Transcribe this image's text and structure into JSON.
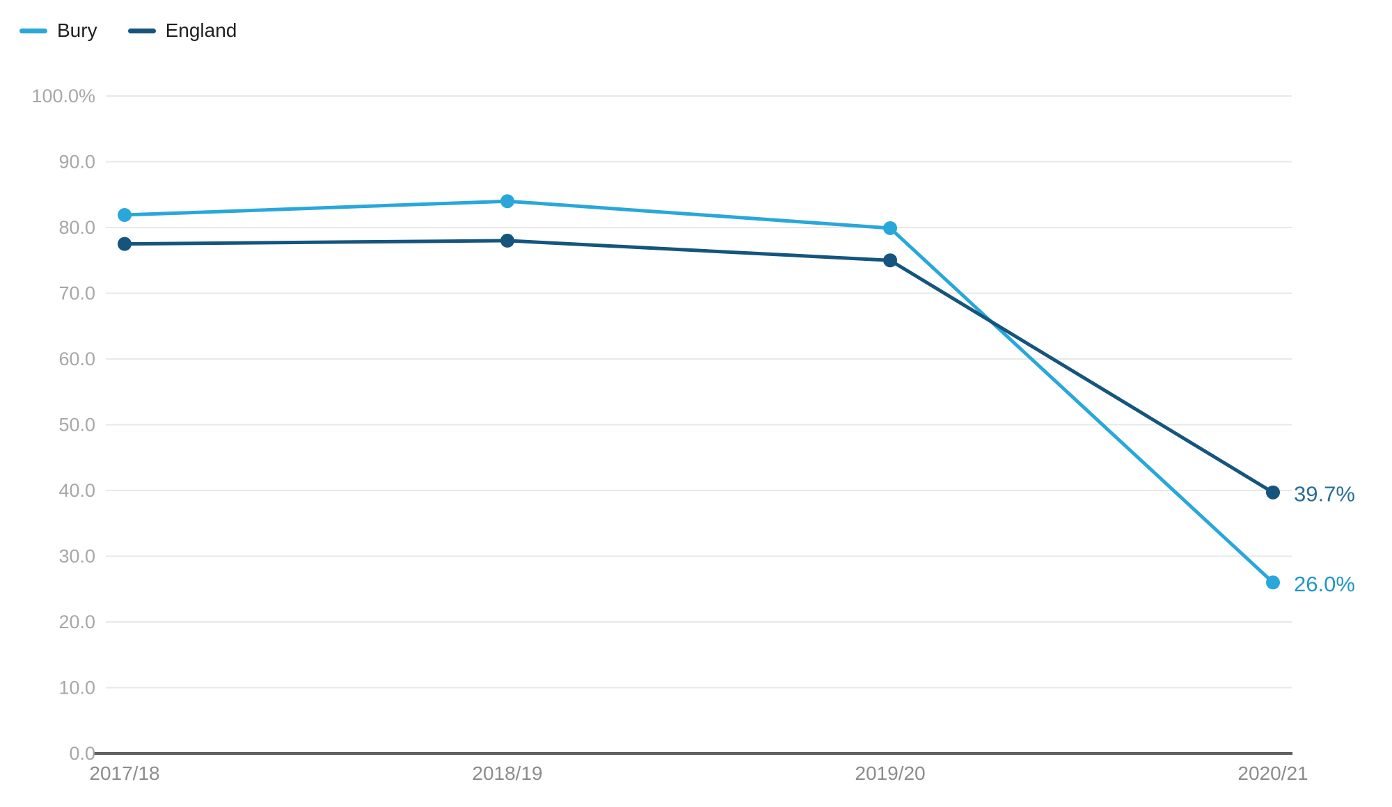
{
  "chart_data": {
    "type": "line",
    "title": "",
    "xlabel": "",
    "ylabel": "",
    "categories": [
      "2017/18",
      "2018/19",
      "2019/20",
      "2020/21"
    ],
    "series": [
      {
        "name": "Bury",
        "color": "#2AA7DA",
        "label_color": "#2196C9",
        "values": [
          81.9,
          84.0,
          79.9,
          26.0
        ],
        "end_label": "26.0%"
      },
      {
        "name": "England",
        "color": "#15557D",
        "label_color": "#2A6E94",
        "values": [
          77.5,
          78.0,
          75.0,
          39.7
        ],
        "end_label": "39.7%"
      }
    ],
    "ylim": [
      0,
      100
    ],
    "y_tick_step": 10,
    "y_tick_labels": [
      "0.0",
      "10.0",
      "20.0",
      "30.0",
      "40.0",
      "50.0",
      "60.0",
      "70.0",
      "80.0",
      "90.0",
      "100.0%"
    ],
    "grid": "horizontal",
    "legend_position": "top-left",
    "grid_color": "#e8e8e8",
    "axis_line_color": "#5f5f5f",
    "y_tick_color": "#a7a7a7",
    "x_tick_color": "#8c8c8c"
  }
}
